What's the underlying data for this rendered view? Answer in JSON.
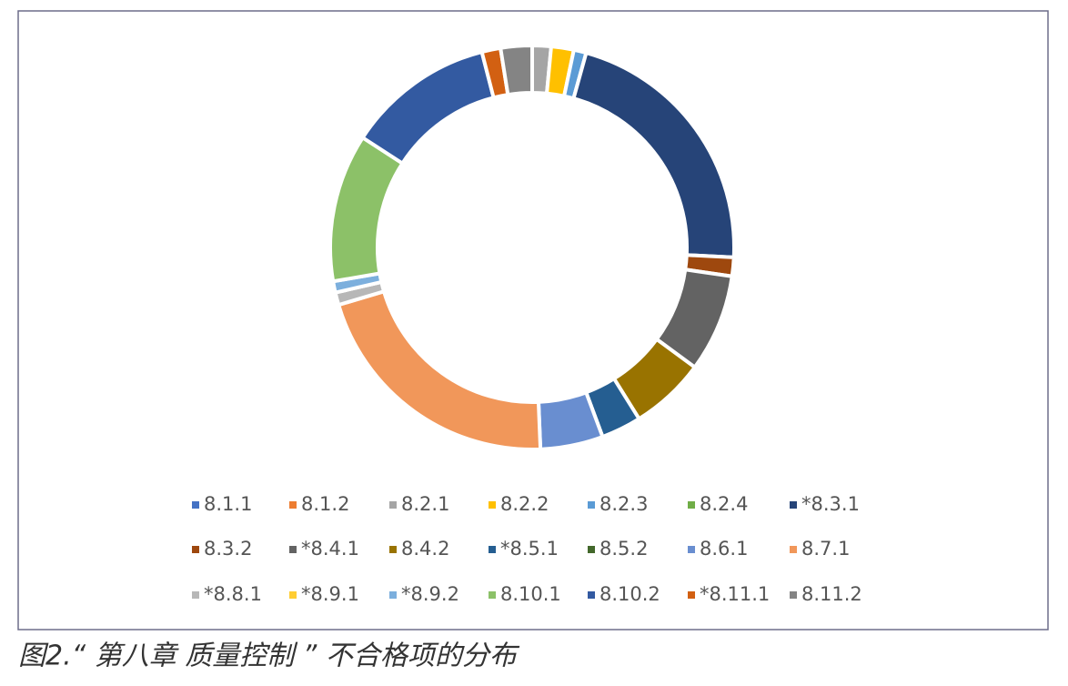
{
  "chart_data": {
    "type": "donut",
    "caption": "图2.“ 第八章 质量控制 ” 不合格项的分布",
    "categories": [
      "8.1.1",
      "8.1.2",
      "8.2.1",
      "8.2.2",
      "8.2.3",
      "8.2.4",
      "*8.3.1",
      "8.3.2",
      "*8.4.1",
      "8.4.2",
      "*8.5.1",
      "8.5.2",
      "8.6.1",
      "8.7.1",
      "*8.8.1",
      "*8.9.1",
      "*8.9.2",
      "8.10.1",
      "8.10.2",
      "*8.11.1",
      "8.11.2"
    ],
    "values": [
      0,
      0,
      1.5,
      1.8,
      1,
      0,
      21.4,
      1.5,
      7.8,
      6,
      3.2,
      0,
      5,
      21,
      1,
      0,
      0.9,
      11.8,
      11.8,
      1.5,
      2.5
    ],
    "colors": [
      "#4472c4",
      "#ed7d31",
      "#a5a5a5",
      "#ffc000",
      "#5b9bd5",
      "#70ad47",
      "#264478",
      "#9e480e",
      "#636363",
      "#997300",
      "#255e91",
      "#43682b",
      "#698ed0",
      "#f1975a",
      "#b7b7b7",
      "#ffcd33",
      "#7cafdd",
      "#8cc168",
      "#335aa1",
      "#d26012",
      "#848484"
    ]
  }
}
